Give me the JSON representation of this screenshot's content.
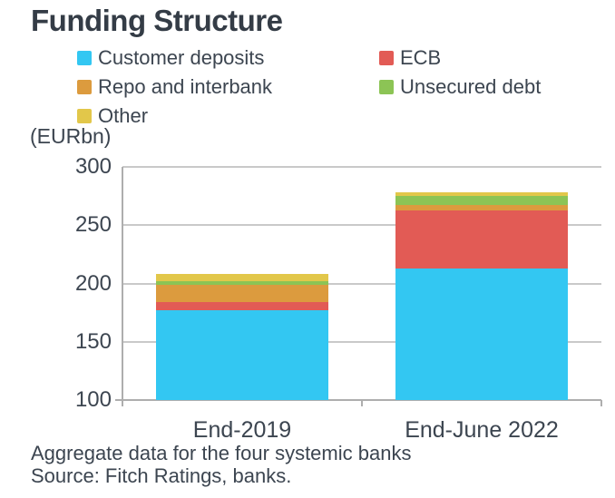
{
  "title": "Funding Structure",
  "unit_label": "(EURbn)",
  "footnote": "Aggregate data for the four systemic banks",
  "source": "Source: Fitch Ratings, banks.",
  "legend": [
    {
      "label": "Customer deposits",
      "color": "#33c7f2"
    },
    {
      "label": "ECB",
      "color": "#e25b55"
    },
    {
      "label": "Repo and interbank",
      "color": "#dc9b3e"
    },
    {
      "label": "Unsecured debt",
      "color": "#8cc455"
    },
    {
      "label": "Other",
      "color": "#e2c74a"
    }
  ],
  "colors": {
    "text": "#3c4550",
    "title": "#343c46",
    "gridline": "#c9c9c9",
    "axis": "#aeaeae",
    "background": "#ffffff"
  },
  "chart_data": {
    "type": "bar",
    "stacked": true,
    "title": "Funding Structure",
    "ylabel": "(EURbn)",
    "categories": [
      "End-2019",
      "End-June 2022"
    ],
    "series": [
      {
        "name": "Customer deposits",
        "color": "#33c7f2",
        "values": [
          177,
          213
        ]
      },
      {
        "name": "ECB",
        "color": "#e25b55",
        "values": [
          7,
          50
        ]
      },
      {
        "name": "Repo and interbank",
        "color": "#dc9b3e",
        "values": [
          15,
          4
        ]
      },
      {
        "name": "Unsecured debt",
        "color": "#8cc455",
        "values": [
          3,
          8
        ]
      },
      {
        "name": "Other",
        "color": "#e2c74a",
        "values": [
          6,
          3.5
        ]
      }
    ],
    "totals": [
      208,
      278.5
    ],
    "ylim": [
      100,
      300
    ],
    "yticks": [
      300,
      250,
      200,
      150,
      100
    ],
    "grid": true,
    "legend_position": "top"
  }
}
